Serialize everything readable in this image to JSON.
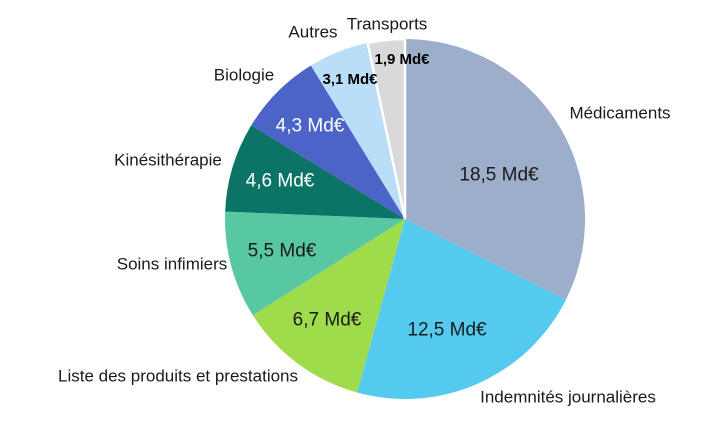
{
  "chart_data": {
    "type": "pie",
    "unit": "Md€",
    "direction": "clockwise",
    "start_angle_deg": 0,
    "background_color": "#FFFFFF",
    "category_text_color": "#1A1A1A",
    "slices": [
      {
        "label": "Médicaments",
        "value": 18.5,
        "value_label": "18,5 Md€",
        "color": "#9DAECB",
        "value_text_color": "#1A1A1A"
      },
      {
        "label": "Indemnités journalières",
        "value": 12.5,
        "value_label": "12,5 Md€",
        "color": "#55CAEF",
        "value_text_color": "#1A1A1A"
      },
      {
        "label": "Liste des produits et prestations",
        "value": 6.7,
        "value_label": "6,7 Md€",
        "color": "#9FDC4C",
        "value_text_color": "#1A1A1A"
      },
      {
        "label": "Soins infimiers",
        "value": 5.5,
        "value_label": "5,5 Md€",
        "color": "#58C8A2",
        "value_text_color": "#1A1A1A"
      },
      {
        "label": "Kinésithérapie",
        "value": 4.6,
        "value_label": "4,6 Md€",
        "color": "#0C7467",
        "value_text_color": "#FFFFFF"
      },
      {
        "label": "Biologie",
        "value": 4.3,
        "value_label": "4,3 Md€",
        "color": "#4C63C8",
        "value_text_color": "#FFFFFF"
      },
      {
        "label": "Autres",
        "value": 3.1,
        "value_label": "3,1 Md€",
        "color": "#BADEF7",
        "value_text_color": "#000000"
      },
      {
        "label": "Transports",
        "value": 1.9,
        "value_label": "1,9 Md€",
        "color": "#D9D9D9",
        "value_text_color": "#000000",
        "border_color": "#FFFFFF"
      }
    ]
  }
}
